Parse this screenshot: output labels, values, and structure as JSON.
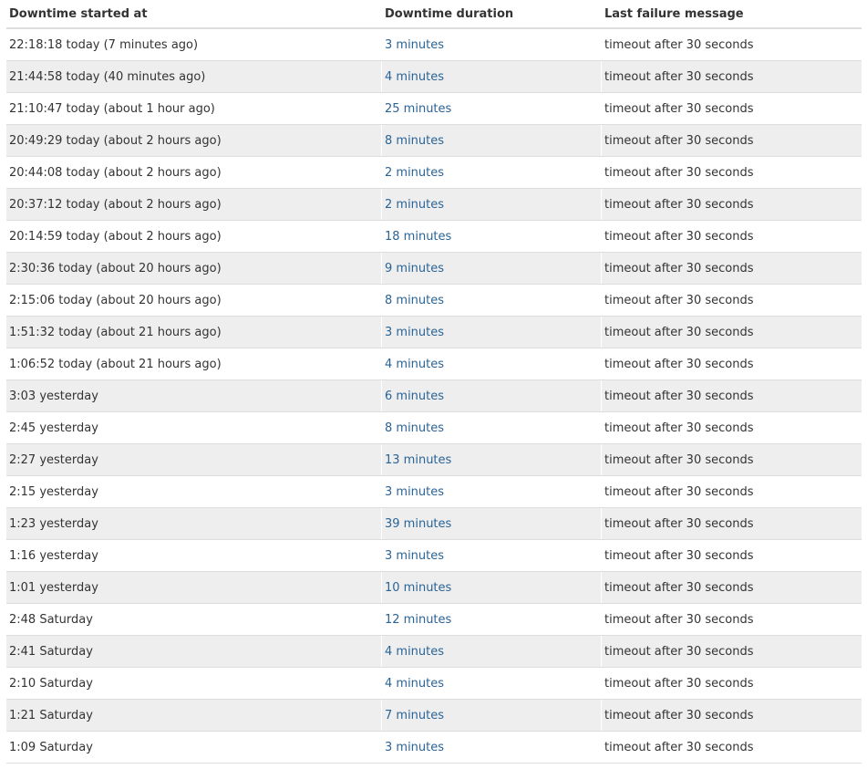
{
  "colors": {
    "link": "#2a6496",
    "stripe": "#eeeeee",
    "border": "#dddddd"
  },
  "table": {
    "headers": [
      "Downtime started at",
      "Downtime duration",
      "Last failure message"
    ],
    "rows": [
      [
        "22:18:18 today (7 minutes ago)",
        "3 minutes",
        "timeout after 30 seconds"
      ],
      [
        "21:44:58 today (40 minutes ago)",
        "4 minutes",
        "timeout after 30 seconds"
      ],
      [
        "21:10:47 today (about 1 hour ago)",
        "25 minutes",
        "timeout after 30 seconds"
      ],
      [
        "20:49:29 today (about 2 hours ago)",
        "8 minutes",
        "timeout after 30 seconds"
      ],
      [
        "20:44:08 today (about 2 hours ago)",
        "2 minutes",
        "timeout after 30 seconds"
      ],
      [
        "20:37:12 today (about 2 hours ago)",
        "2 minutes",
        "timeout after 30 seconds"
      ],
      [
        "20:14:59 today (about 2 hours ago)",
        "18 minutes",
        "timeout after 30 seconds"
      ],
      [
        "2:30:36 today (about 20 hours ago)",
        "9 minutes",
        "timeout after 30 seconds"
      ],
      [
        "2:15:06 today (about 20 hours ago)",
        "8 minutes",
        "timeout after 30 seconds"
      ],
      [
        "1:51:32 today (about 21 hours ago)",
        "3 minutes",
        "timeout after 30 seconds"
      ],
      [
        "1:06:52 today (about 21 hours ago)",
        "4 minutes",
        "timeout after 30 seconds"
      ],
      [
        "3:03 yesterday",
        "6 minutes",
        "timeout after 30 seconds"
      ],
      [
        "2:45 yesterday",
        "8 minutes",
        "timeout after 30 seconds"
      ],
      [
        "2:27 yesterday",
        "13 minutes",
        "timeout after 30 seconds"
      ],
      [
        "2:15 yesterday",
        "3 minutes",
        "timeout after 30 seconds"
      ],
      [
        "1:23 yesterday",
        "39 minutes",
        "timeout after 30 seconds"
      ],
      [
        "1:16 yesterday",
        "3 minutes",
        "timeout after 30 seconds"
      ],
      [
        "1:01 yesterday",
        "10 minutes",
        "timeout after 30 seconds"
      ],
      [
        "2:48 Saturday",
        "12 minutes",
        "timeout after 30 seconds"
      ],
      [
        "2:41 Saturday",
        "4 minutes",
        "timeout after 30 seconds"
      ],
      [
        "2:10 Saturday",
        "4 minutes",
        "timeout after 30 seconds"
      ],
      [
        "1:21 Saturday",
        "7 minutes",
        "timeout after 30 seconds"
      ],
      [
        "1:09 Saturday",
        "3 minutes",
        "timeout after 30 seconds"
      ]
    ]
  }
}
